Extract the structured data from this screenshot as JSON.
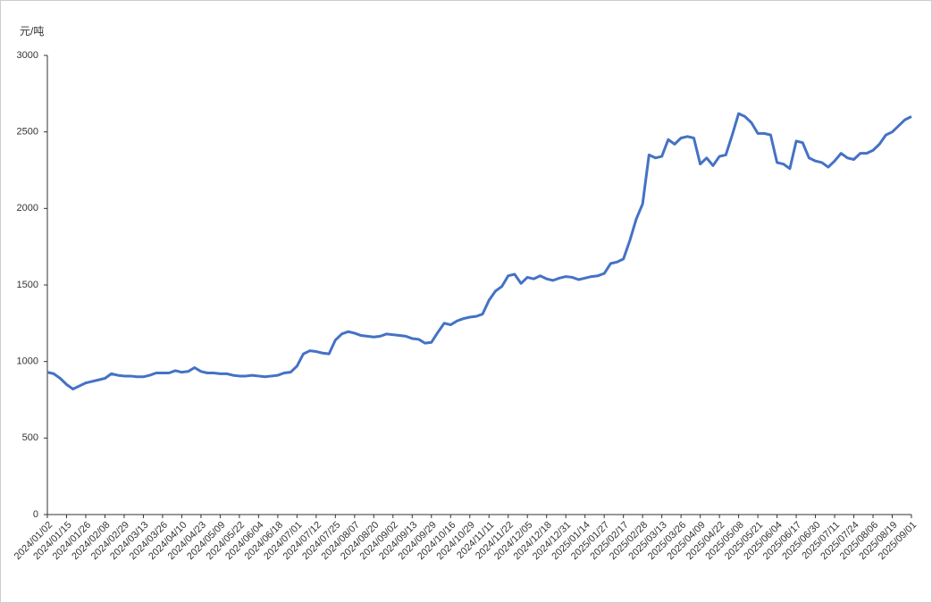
{
  "chart_data": {
    "type": "line",
    "y_label": "元/吨",
    "categories": [
      "2024/01/02",
      null,
      null,
      "2024/01/15",
      null,
      null,
      "2024/01/26",
      null,
      null,
      "2024/02/08",
      null,
      null,
      "2024/02/29",
      null,
      null,
      "2024/03/13",
      null,
      null,
      "2024/03/26",
      null,
      null,
      "2024/04/10",
      null,
      null,
      "2024/04/23",
      null,
      null,
      "2024/05/09",
      null,
      null,
      "2024/05/22",
      null,
      null,
      "2024/06/04",
      null,
      null,
      "2024/06/18",
      null,
      null,
      "2024/07/01",
      null,
      null,
      "2024/07/12",
      null,
      null,
      "2024/07/25",
      null,
      null,
      "2024/08/07",
      null,
      null,
      "2024/08/20",
      null,
      null,
      "2024/09/02",
      null,
      null,
      "2024/09/13",
      null,
      null,
      "2024/09/29",
      null,
      null,
      "2024/10/16",
      null,
      null,
      "2024/10/29",
      null,
      null,
      "2024/11/11",
      null,
      null,
      "2024/11/22",
      null,
      null,
      "2024/12/05",
      null,
      null,
      "2024/12/18",
      null,
      null,
      "2024/12/31",
      null,
      null,
      "2025/01/14",
      null,
      null,
      "2025/01/27",
      null,
      null,
      "2025/02/17",
      null,
      null,
      "2025/02/28",
      null,
      null,
      "2025/03/13",
      null,
      null,
      "2025/03/26",
      null,
      null,
      "2025/04/09",
      null,
      null,
      "2025/04/22",
      null,
      null,
      "2025/05/08",
      null,
      null,
      "2025/05/21",
      null,
      null,
      "2025/06/04",
      null,
      null,
      "2025/06/17",
      null,
      null,
      "2025/06/30",
      null,
      null,
      "2025/07/11",
      null,
      null,
      "2025/07/24",
      null,
      null,
      "2025/08/06",
      null,
      null,
      "2025/08/19",
      null,
      null,
      "2025/09/01"
    ],
    "series": [
      {
        "color": "#4472c4",
        "values": [
          930,
          920,
          890,
          850,
          820,
          840,
          860,
          870,
          880,
          890,
          920,
          910,
          905,
          905,
          900,
          900,
          910,
          925,
          925,
          925,
          940,
          930,
          935,
          960,
          935,
          925,
          925,
          920,
          920,
          910,
          905,
          905,
          910,
          905,
          900,
          905,
          910,
          925,
          930,
          970,
          1050,
          1070,
          1065,
          1055,
          1050,
          1140,
          1180,
          1195,
          1185,
          1170,
          1165,
          1160,
          1165,
          1180,
          1175,
          1170,
          1165,
          1150,
          1145,
          1120,
          1125,
          1190,
          1250,
          1240,
          1265,
          1280,
          1290,
          1295,
          1310,
          1400,
          1460,
          1490,
          1560,
          1570,
          1510,
          1550,
          1540,
          1560,
          1540,
          1530,
          1545,
          1555,
          1550,
          1535,
          1545,
          1555,
          1560,
          1575,
          1640,
          1650,
          1670,
          1790,
          1930,
          2030,
          2350,
          2330,
          2340,
          2450,
          2420,
          2460,
          2470,
          2460,
          2290,
          2330,
          2280,
          2340,
          2350,
          2480,
          2620,
          2600,
          2560,
          2490,
          2490,
          2480,
          2300,
          2290,
          2260,
          2440,
          2430,
          2330,
          2310,
          2300,
          2270,
          2310,
          2360,
          2330,
          2320,
          2360,
          2360,
          2380,
          2420,
          2480,
          2500,
          2540,
          2580,
          2600
        ]
      }
    ],
    "ylim": [
      0,
      3000
    ],
    "yticks": [
      0,
      500,
      1000,
      1500,
      2000,
      2500,
      3000
    ],
    "grid": false
  }
}
